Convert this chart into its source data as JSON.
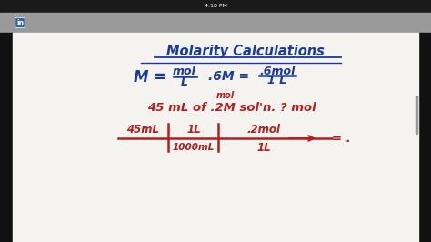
{
  "bg_outer": "#000000",
  "status_bar_color": "#1c1c1c",
  "toolbar_color": "#888888",
  "whiteboard_color": "#f5f3ef",
  "title_color": "#1a3a9e",
  "formula_color": "#1a3a9e",
  "red_color": "#b02020",
  "status_text": "4:18 PM",
  "title_text": "Molarity Calculations",
  "line1_left": "M =",
  "frac1_num": "mol",
  "frac1_den": "L",
  "line1_mid": ".6M =",
  "frac2_num": ".6mol",
  "frac2_den": "1 L",
  "red_annot": "mol",
  "line2": "45 mL of .2M sol'n. ? mol",
  "da_top1": "45mL",
  "da_top2": "1L",
  "da_top3": ".2mol",
  "da_bot1": "1000mL",
  "da_bot2": "1L",
  "da_end": "= ."
}
